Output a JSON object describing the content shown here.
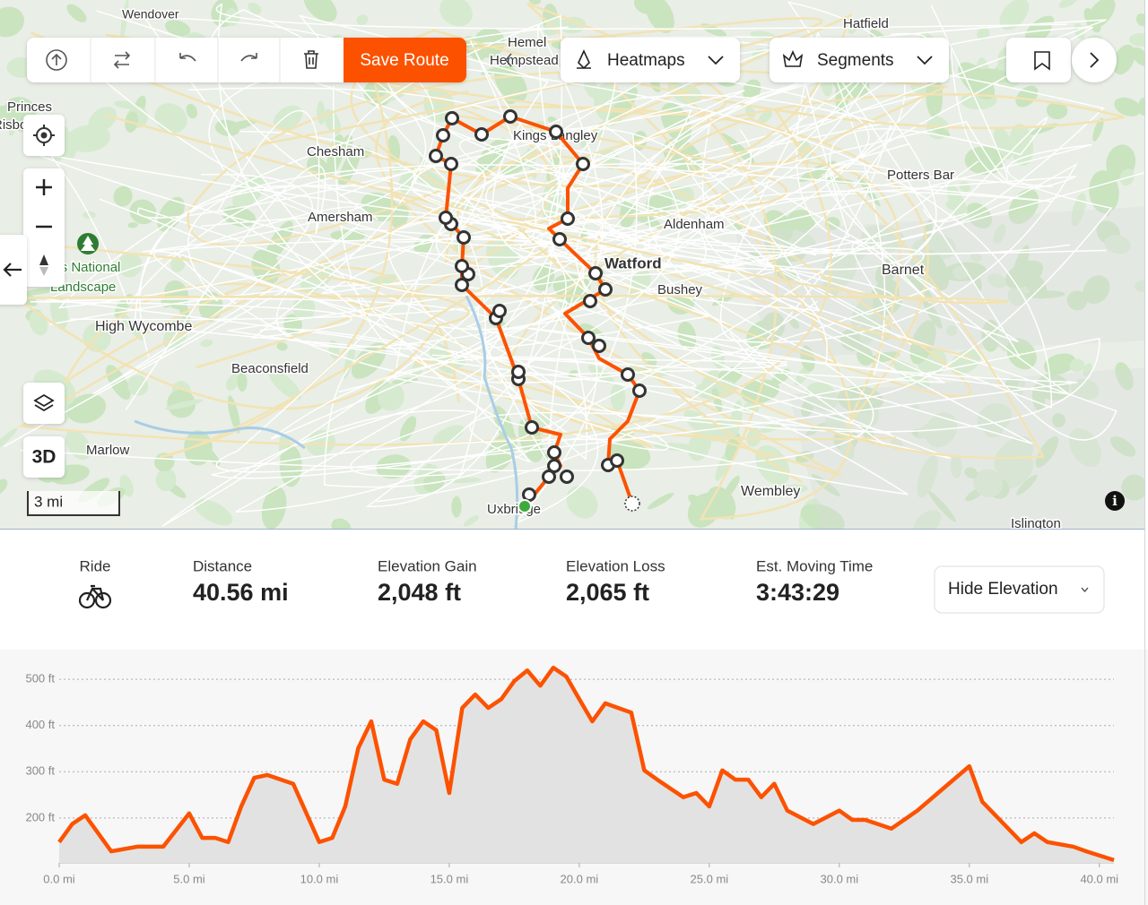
{
  "toolbar": {
    "save": "Save Route",
    "heatmaps": "Heatmaps",
    "segments": "Segments"
  },
  "map": {
    "labels": [
      "Wendover",
      "Hemel",
      "Hempstead",
      "Hatfield",
      "Princes",
      "Risborough",
      "Chesham",
      "Kings Langley",
      "Potters Bar",
      "Amersham",
      "Aldenham",
      "Watford",
      "Bushey",
      "Barnet",
      "Chilterns National",
      "Landscape",
      "High Wycombe",
      "Beaconsfield",
      "Marlow",
      "Wembley",
      "Uxbridge",
      "Islington"
    ],
    "view_3d": "3D",
    "scale": "3 mi"
  },
  "stats": {
    "ride": "Ride",
    "items": [
      {
        "label": "Distance",
        "value": "40.56 mi"
      },
      {
        "label": "Elevation Gain",
        "value": "2,048 ft"
      },
      {
        "label": "Elevation Loss",
        "value": "2,065 ft"
      },
      {
        "label": "Est. Moving Time",
        "value": "3:43:29"
      }
    ],
    "toggle": "Hide Elevation"
  },
  "chart_data": {
    "type": "area",
    "color": "#fc5200",
    "grid": true,
    "x": [
      0,
      0.5,
      1,
      1.5,
      2,
      3,
      4,
      5,
      5.5,
      6,
      6.5,
      7,
      7.5,
      8,
      9,
      10,
      10.5,
      11,
      11.5,
      12,
      12.5,
      13,
      13.5,
      14,
      14.5,
      15,
      15.5,
      16,
      16.5,
      17,
      17.5,
      18,
      18.5,
      19,
      19.5,
      20,
      20.5,
      21,
      21.5,
      22,
      22.5,
      23,
      24,
      24.5,
      25,
      25.5,
      26,
      26.5,
      27,
      27.5,
      28,
      29,
      30,
      30.5,
      31,
      32,
      33,
      34,
      35,
      35.5,
      36,
      37,
      37.5,
      38,
      39,
      39.5,
      40,
      40.56
    ],
    "values": [
      148,
      187,
      206,
      167,
      128,
      138,
      138,
      210,
      157,
      157,
      148,
      225,
      287,
      293,
      274,
      148,
      157,
      225,
      351,
      409,
      283,
      274,
      370,
      409,
      390,
      254,
      438,
      467,
      438,
      457,
      496,
      519,
      486,
      525,
      506,
      457,
      409,
      448,
      438,
      428,
      303,
      283,
      245,
      254,
      225,
      303,
      283,
      283,
      245,
      274,
      216,
      187,
      216,
      196,
      196,
      177,
      216,
      264,
      312,
      235,
      206,
      148,
      167,
      148,
      138,
      128,
      119,
      109
    ],
    "xlim": [
      0,
      40.56
    ],
    "ylim": [
      103,
      535
    ],
    "xticks": [
      {
        "value": 0,
        "label": "0.0 mi"
      },
      {
        "value": 5,
        "label": "5.0 mi"
      },
      {
        "value": 10,
        "label": "10.0 mi"
      },
      {
        "value": 15,
        "label": "15.0 mi"
      },
      {
        "value": 20,
        "label": "20.0 mi"
      },
      {
        "value": 25,
        "label": "25.0 mi"
      },
      {
        "value": 30,
        "label": "30.0 mi"
      },
      {
        "value": 35,
        "label": "35.0 mi"
      },
      {
        "value": 40,
        "label": "40.0 mi"
      }
    ],
    "yticks": [
      {
        "value": 200,
        "label": "200 ft"
      },
      {
        "value": 300,
        "label": "300 ft"
      },
      {
        "value": 400,
        "label": "400 ft"
      },
      {
        "value": 500,
        "label": "500 ft"
      }
    ]
  }
}
